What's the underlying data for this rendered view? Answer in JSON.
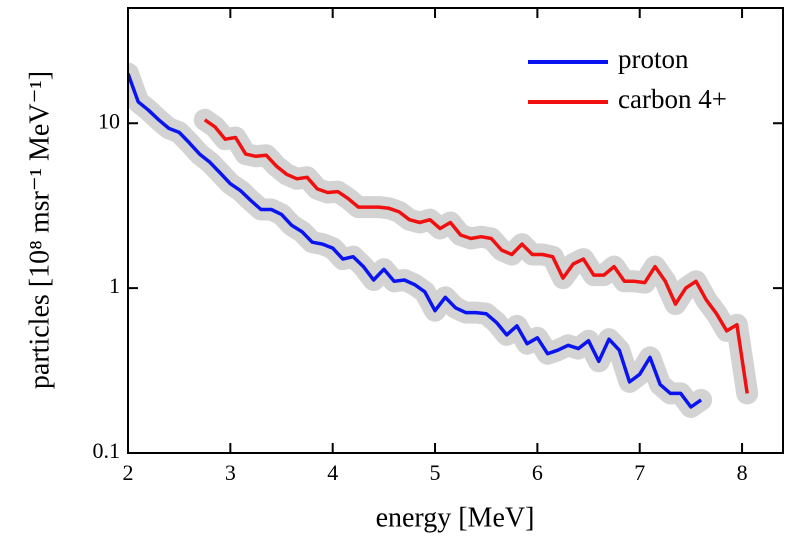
{
  "chart_data": {
    "type": "line",
    "log_y": true,
    "xlabel": "energy [MeV]",
    "ylabel": "particles [10⁸ msr⁻¹ MeV⁻¹]",
    "xlim": [
      2,
      8.4
    ],
    "ylim": [
      0.1,
      50
    ],
    "xticks": [
      2,
      3,
      4,
      5,
      6,
      7,
      8
    ],
    "yticks": [
      0.1,
      1,
      10
    ],
    "legend": "upper right",
    "band_color": "#d3d3d3",
    "series": [
      {
        "name": "proton",
        "color": "#0a14f0",
        "x": [
          2.0,
          2.1,
          2.2,
          2.3,
          2.4,
          2.5,
          2.6,
          2.7,
          2.8,
          2.9,
          3.0,
          3.1,
          3.2,
          3.3,
          3.4,
          3.5,
          3.6,
          3.7,
          3.8,
          3.9,
          4.0,
          4.1,
          4.2,
          4.3,
          4.4,
          4.5,
          4.6,
          4.7,
          4.8,
          4.9,
          5.0,
          5.1,
          5.2,
          5.3,
          5.4,
          5.5,
          5.6,
          5.7,
          5.8,
          5.9,
          6.0,
          6.1,
          6.2,
          6.3,
          6.4,
          6.5,
          6.6,
          6.7,
          6.8,
          6.9,
          7.0,
          7.1,
          7.2,
          7.3,
          7.4,
          7.5,
          7.6
        ],
        "values": [
          20,
          13.5,
          12,
          10.5,
          9.3,
          8.8,
          7.6,
          6.5,
          5.8,
          5.0,
          4.3,
          3.9,
          3.4,
          3.0,
          3.0,
          2.8,
          2.4,
          2.2,
          1.9,
          1.85,
          1.75,
          1.5,
          1.55,
          1.35,
          1.12,
          1.3,
          1.1,
          1.12,
          1.05,
          0.95,
          0.73,
          0.88,
          0.76,
          0.71,
          0.71,
          0.7,
          0.62,
          0.52,
          0.59,
          0.46,
          0.5,
          0.4,
          0.42,
          0.45,
          0.43,
          0.48,
          0.36,
          0.49,
          0.42,
          0.27,
          0.3,
          0.38,
          0.26,
          0.23,
          0.23,
          0.19,
          0.21
        ]
      },
      {
        "name": "carbon 4+",
        "color": "#f01010",
        "x": [
          2.75,
          2.85,
          2.95,
          3.05,
          3.15,
          3.25,
          3.35,
          3.45,
          3.55,
          3.65,
          3.75,
          3.85,
          3.95,
          4.05,
          4.15,
          4.25,
          4.35,
          4.45,
          4.55,
          4.65,
          4.75,
          4.85,
          4.95,
          5.05,
          5.15,
          5.25,
          5.35,
          5.45,
          5.55,
          5.65,
          5.75,
          5.85,
          5.95,
          6.05,
          6.15,
          6.25,
          6.35,
          6.45,
          6.55,
          6.65,
          6.75,
          6.85,
          6.95,
          7.05,
          7.15,
          7.25,
          7.35,
          7.45,
          7.55,
          7.65,
          7.75,
          7.85,
          7.95,
          8.05
        ],
        "values": [
          10.5,
          9.5,
          8,
          8.2,
          6.5,
          6.3,
          6.4,
          5.5,
          4.9,
          4.6,
          4.7,
          4.0,
          3.8,
          3.85,
          3.5,
          3.1,
          3.1,
          3.1,
          3.05,
          2.9,
          2.6,
          2.5,
          2.6,
          2.3,
          2.5,
          2.1,
          2.0,
          2.05,
          2.0,
          1.7,
          1.6,
          1.85,
          1.6,
          1.6,
          1.55,
          1.15,
          1.4,
          1.5,
          1.2,
          1.2,
          1.35,
          1.1,
          1.1,
          1.08,
          1.35,
          1.1,
          0.8,
          1.0,
          1.1,
          0.85,
          0.7,
          0.55,
          0.6,
          0.23
        ]
      }
    ]
  }
}
